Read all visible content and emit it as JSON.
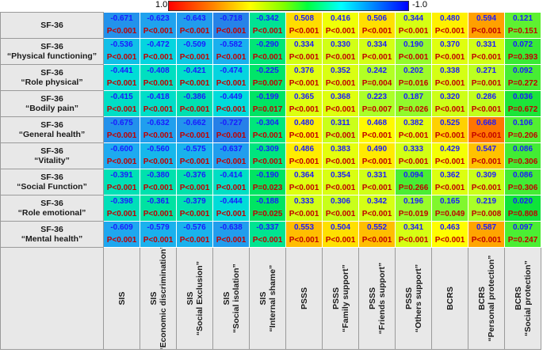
{
  "legend": {
    "left_label": "1.0",
    "right_label": "-1.0"
  },
  "colors": {
    "header_bg": "#e8e8e8",
    "r_text": "#1a1aff",
    "p_text": "#c00000"
  },
  "chart_data": {
    "type": "heatmap",
    "title": "",
    "color_scale": {
      "min": -1.0,
      "max": 1.0,
      "low_color": "#0000ff",
      "high_color": "#ff0000"
    },
    "rows": [
      {
        "l1": "SF-36",
        "l2": ""
      },
      {
        "l1": "SF-36",
        "l2": "“Physical functioning”"
      },
      {
        "l1": "SF-36",
        "l2": "“Role physical”"
      },
      {
        "l1": "SF-36",
        "l2": "“Bodily pain”"
      },
      {
        "l1": "SF-36",
        "l2": "“General health”"
      },
      {
        "l1": "SF-36",
        "l2": "“Vitality”"
      },
      {
        "l1": "SF-36",
        "l2": "“Social Function”"
      },
      {
        "l1": "SF-36",
        "l2": "“Role emotional”"
      },
      {
        "l1": "SF-36",
        "l2": "“Mental health”"
      }
    ],
    "columns": [
      {
        "l1": "SIS",
        "l2": ""
      },
      {
        "l1": "SIS",
        "l2": "“Economic discrimination”"
      },
      {
        "l1": "SIS",
        "l2": "“Social Exclusion”"
      },
      {
        "l1": "SIS",
        "l2": "“Social isolation”"
      },
      {
        "l1": "SIS",
        "l2": "“Internal shame”"
      },
      {
        "l1": "PSSS",
        "l2": ""
      },
      {
        "l1": "PSSS",
        "l2": "“Family support”"
      },
      {
        "l1": "PSSS",
        "l2": "“Friends support”"
      },
      {
        "l1": "PSSS",
        "l2": "“Others support”"
      },
      {
        "l1": "BCRS",
        "l2": ""
      },
      {
        "l1": "BCRS",
        "l2": "“Personal protection”"
      },
      {
        "l1": "BCRS",
        "l2": "“Social protection”"
      }
    ],
    "r_values": [
      [
        "-0.671",
        "-0.623",
        "-0.643",
        "-0.718",
        "-0.342",
        "0.508",
        "0.416",
        "0.506",
        "0.344",
        "0.480",
        "0.594",
        "0.121"
      ],
      [
        "-0.536",
        "-0.472",
        "-0.509",
        "-0.582",
        "-0.290",
        "0.334",
        "0.330",
        "0.334",
        "0.190",
        "0.370",
        "0.331",
        "0.072"
      ],
      [
        "-0.441",
        "-0.408",
        "-0.421",
        "-0.474",
        "-0.225",
        "0.376",
        "0.352",
        "0.242",
        "0.202",
        "0.338",
        "0.271",
        "0.092"
      ],
      [
        "-0.415",
        "-0.418",
        "-0.386",
        "-0.449",
        "-0.199",
        "0.365",
        "0.368",
        "0.223",
        "0.187",
        "0.320",
        "0.286",
        "0.036"
      ],
      [
        "-0.675",
        "-0.632",
        "-0.662",
        "-0.727",
        "-0.304",
        "0.480",
        "0.311",
        "0.468",
        "0.382",
        "0.525",
        "0.668",
        "0.106"
      ],
      [
        "-0.600",
        "-0.560",
        "-0.575",
        "-0.637",
        "-0.309",
        "0.486",
        "0.383",
        "0.490",
        "0.333",
        "0.429",
        "0.547",
        "0.086"
      ],
      [
        "-0.391",
        "-0.380",
        "-0.376",
        "-0.414",
        "-0.190",
        "0.364",
        "0.354",
        "0.331",
        "0.094",
        "0.362",
        "0.309",
        "0.086"
      ],
      [
        "-0.398",
        "-0.361",
        "-0.379",
        "-0.444",
        "-0.188",
        "0.333",
        "0.306",
        "0.342",
        "0.196",
        "0.165",
        "0.219",
        "0.020"
      ],
      [
        "-0.609",
        "-0.579",
        "-0.576",
        "-0.638",
        "-0.337",
        "0.553",
        "0.504",
        "0.552",
        "0.341",
        "0.463",
        "0.587",
        "0.097"
      ]
    ],
    "p_values": [
      [
        "P<0.001",
        "P<0.001",
        "P<0.001",
        "P<0.001",
        "P<0.001",
        "P<0.001",
        "P<0.001",
        "P<0.001",
        "P<0.001",
        "P<0.001",
        "P<0.001",
        "P=0.151"
      ],
      [
        "P<0.001",
        "P<0.001",
        "P<0.001",
        "P<0.001",
        "P<0.001",
        "P<0.001",
        "P<0.001",
        "P<0.001",
        "P<0.001",
        "P<0.001",
        "P<0.001",
        "P=0.393"
      ],
      [
        "P<0.001",
        "P<0.001",
        "P<0.001",
        "P<0.001",
        "P=0.007",
        "P<0.001",
        "P<0.001",
        "P=0.004",
        "P=0.016",
        "P<0.001",
        "P=0.001",
        "P=0.272"
      ],
      [
        "P<0.001",
        "P<0.001",
        "P<0.001",
        "P<0.001",
        "P=0.017",
        "P<0.001",
        "P<0.001",
        "P=0.007",
        "P=0.026",
        "P<0.001",
        "P<0.001",
        "P=0.672"
      ],
      [
        "P<0.001",
        "P<0.001",
        "P<0.001",
        "P<0.001",
        "P<0.001",
        "P<0.001",
        "P<0.001",
        "P<0.001",
        "P<0.001",
        "P<0.001",
        "P<0.001",
        "P=0.206"
      ],
      [
        "P<0.001",
        "P<0.001",
        "P<0.001",
        "P<0.001",
        "P<0.001",
        "P<0.001",
        "P<0.001",
        "P<0.001",
        "P<0.001",
        "P<0.001",
        "P<0.001",
        "P=0.306"
      ],
      [
        "P<0.001",
        "P<0.001",
        "P<0.001",
        "P<0.001",
        "P=0.023",
        "P<0.001",
        "P<0.001",
        "P<0.001",
        "P=0.266",
        "P<0.001",
        "P<0.001",
        "P=0.306"
      ],
      [
        "P<0.001",
        "P<0.001",
        "P<0.001",
        "P<0.001",
        "P=0.025",
        "P<0.001",
        "P<0.001",
        "P<0.001",
        "P=0.019",
        "P=0.049",
        "P=0.008",
        "P=0.808"
      ],
      [
        "P<0.001",
        "P<0.001",
        "P<0.001",
        "P<0.001",
        "P<0.001",
        "P<0.001",
        "P<0.001",
        "P<0.001",
        "P<0.001",
        "P<0.001",
        "P<0.001",
        "P=0.247"
      ]
    ]
  }
}
